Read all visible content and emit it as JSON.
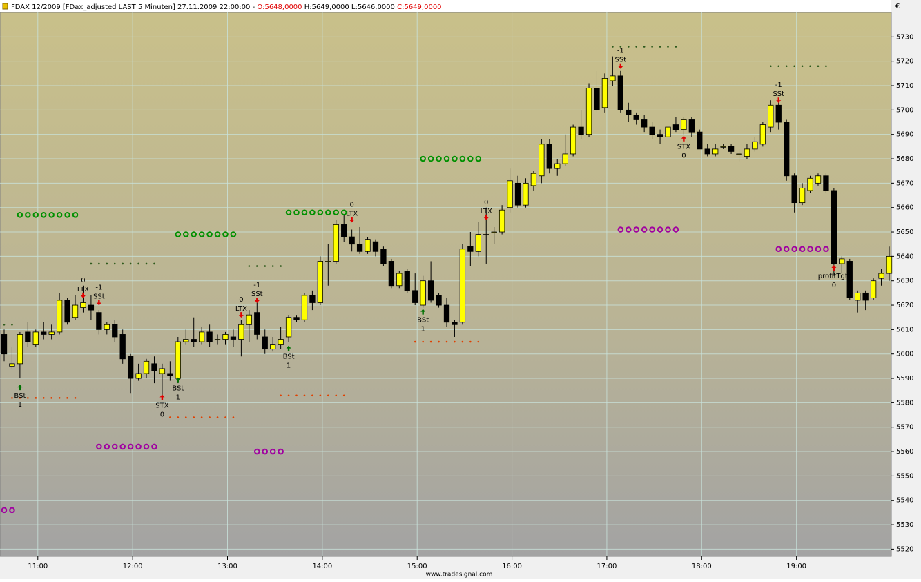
{
  "header": {
    "instrument": "FDAX 12/2009 [FDax_adjusted LAST 5 Minuten] 27.11.2009 22:00:00 -",
    "open": "O:5648,0000",
    "high": "H:5649,0000",
    "low": "L:5646,0000",
    "close": "C:5649,0000",
    "currency": "€"
  },
  "footer": "www.tradesignal.com",
  "chart_data": {
    "type": "candlestick",
    "categories": [
      null,
      null,
      null,
      null,
      "11:00",
      null,
      null,
      null,
      null,
      null,
      null,
      null,
      null,
      null,
      null,
      null,
      "12:00",
      null,
      null,
      null,
      null,
      null,
      null,
      null,
      null,
      null,
      null,
      null,
      "13:00",
      null,
      null,
      null,
      null,
      null,
      null,
      null,
      null,
      null,
      null,
      null,
      "14:00",
      null,
      null,
      null,
      null,
      null,
      null,
      null,
      null,
      null,
      null,
      null,
      "15:00",
      null,
      null,
      null,
      null,
      null,
      null,
      null,
      null,
      null,
      null,
      null,
      "16:00",
      null,
      null,
      null,
      null,
      null,
      null,
      null,
      null,
      null,
      null,
      null,
      "17:00",
      null,
      null,
      null,
      null,
      null,
      null,
      null,
      null,
      null,
      null,
      null,
      "18:00",
      null,
      null,
      null,
      null,
      null,
      null,
      null,
      null,
      null,
      null,
      null,
      "19:00",
      null,
      null,
      null,
      null,
      null,
      null,
      null,
      null,
      null,
      null,
      null,
      null
    ],
    "open": [
      5608,
      5595,
      5596,
      5609,
      5604,
      5609,
      5608,
      5609,
      5622,
      5615,
      5619,
      5620,
      5617,
      5610,
      5612,
      5608,
      5599,
      5590,
      5592,
      5596,
      5592,
      5592,
      5590,
      5605,
      5606,
      5605,
      5609,
      5606,
      5606,
      5607,
      5606,
      5612,
      5617,
      5607,
      5602,
      5604,
      5607,
      5615,
      5614,
      5624,
      5621,
      5638,
      5638,
      5653,
      5648,
      5645,
      5642,
      5646,
      5643,
      5638,
      5628,
      5634,
      5626,
      5620,
      5630,
      5624,
      5620,
      5613,
      5613,
      5644,
      5642,
      5649,
      5650,
      5650,
      5660,
      5670,
      5661,
      5669,
      5673,
      5686,
      5676,
      5678,
      5682,
      5693,
      5690,
      5709,
      5701,
      5712,
      5714,
      5700,
      5698,
      5696,
      5693,
      5690,
      5689,
      5694,
      5692,
      5696,
      5691,
      5684,
      5682,
      5685,
      5685,
      5682,
      5681,
      5684,
      5686,
      5693,
      5702,
      5695,
      5673,
      5662,
      5667,
      5670,
      5673,
      5667,
      5637,
      5638,
      5622,
      5625,
      5623,
      5631,
      5633
    ],
    "high": [
      5610,
      5603,
      5609,
      5613,
      5610,
      5613,
      5612,
      5625,
      5623,
      5624,
      5628,
      5624,
      5618,
      5613,
      5614,
      5610,
      5600,
      5596,
      5598,
      5599,
      5596,
      5597,
      5607,
      5610,
      5615,
      5611,
      5612,
      5608,
      5609,
      5610,
      5614,
      5618,
      5621,
      5610,
      5607,
      5611,
      5616,
      5616,
      5625,
      5626,
      5640,
      5645,
      5655,
      5657,
      5651,
      5652,
      5648,
      5647,
      5644,
      5639,
      5634,
      5635,
      5633,
      5632,
      5638,
      5625,
      5623,
      5614,
      5645,
      5650,
      5654,
      5660,
      5652,
      5661,
      5676,
      5673,
      5672,
      5675,
      5688,
      5688,
      5680,
      5690,
      5694,
      5700,
      5711,
      5716,
      5715,
      5722,
      5716,
      5703,
      5699,
      5698,
      5695,
      5692,
      5696,
      5697,
      5697,
      5697,
      5692,
      5686,
      5686,
      5686,
      5686,
      5684,
      5686,
      5689,
      5695,
      5704,
      5704,
      5696,
      5674,
      5670,
      5673,
      5674,
      5674,
      5668,
      5640,
      5639,
      5626,
      5626,
      5631,
      5635,
      5644
    ],
    "low": [
      5597,
      5594,
      5590,
      5603,
      5603,
      5606,
      5606,
      5608,
      5612,
      5614,
      5617,
      5614,
      5608,
      5608,
      5605,
      5596,
      5584,
      5589,
      5590,
      5588,
      5583,
      5589,
      5588,
      5604,
      5603,
      5604,
      5603,
      5604,
      5604,
      5603,
      5599,
      5605,
      5606,
      5600,
      5601,
      5602,
      5605,
      5613,
      5613,
      5618,
      5620,
      5628,
      5637,
      5646,
      5642,
      5641,
      5641,
      5640,
      5636,
      5627,
      5627,
      5625,
      5620,
      5619,
      5621,
      5619,
      5611,
      5607,
      5612,
      5636,
      5640,
      5637,
      5645,
      5649,
      5658,
      5660,
      5660,
      5667,
      5670,
      5674,
      5673,
      5677,
      5681,
      5688,
      5689,
      5699,
      5699,
      5710,
      5699,
      5695,
      5694,
      5691,
      5688,
      5686,
      5687,
      5691,
      5690,
      5689,
      5684,
      5681,
      5681,
      5684,
      5682,
      5679,
      5680,
      5683,
      5685,
      5691,
      5692,
      5671,
      5658,
      5661,
      5666,
      5669,
      5666,
      5632,
      5633,
      5622,
      5617,
      5618,
      5622,
      5628,
      5630
    ],
    "close": [
      5600,
      5596,
      5608,
      5605,
      5609,
      5608,
      5609,
      5622,
      5613,
      5620,
      5621,
      5618,
      5610,
      5612,
      5607,
      5598,
      5590,
      5592,
      5597,
      5593,
      5594,
      5591,
      5605,
      5606,
      5605,
      5609,
      5605,
      5606,
      5608,
      5606,
      5612,
      5616,
      5608,
      5602,
      5604,
      5606,
      5615,
      5614,
      5624,
      5621,
      5638,
      5638,
      5653,
      5648,
      5645,
      5642,
      5647,
      5642,
      5637,
      5628,
      5633,
      5626,
      5621,
      5630,
      5622,
      5620,
      5613,
      5612,
      5643,
      5642,
      5649,
      5649,
      5650,
      5659,
      5671,
      5661,
      5670,
      5674,
      5686,
      5676,
      5678,
      5682,
      5693,
      5690,
      5709,
      5700,
      5713,
      5714,
      5700,
      5698,
      5696,
      5693,
      5690,
      5689,
      5693,
      5692,
      5696,
      5691,
      5684,
      5682,
      5684,
      5685,
      5683,
      5682,
      5684,
      5687,
      5694,
      5702,
      5695,
      5673,
      5662,
      5668,
      5672,
      5673,
      5667,
      5637,
      5639,
      5623,
      5625,
      5622,
      5630,
      5633,
      5640
    ],
    "up_color": "#ffff00",
    "down_color": "#000000",
    "ylim": [
      5517,
      5740
    ],
    "yticks": [
      5520,
      5530,
      5540,
      5550,
      5560,
      5570,
      5580,
      5590,
      5600,
      5610,
      5620,
      5630,
      5640,
      5650,
      5660,
      5670,
      5680,
      5690,
      5700,
      5710,
      5720,
      5730
    ],
    "grid": true,
    "levels": [
      {
        "style": "ring",
        "color": "#009000",
        "value": 5657,
        "from": 2,
        "to": 9
      },
      {
        "style": "ring",
        "color": "#009000",
        "value": 5649,
        "from": 22,
        "to": 29
      },
      {
        "style": "ring",
        "color": "#009000",
        "value": 5658,
        "from": 36,
        "to": 43
      },
      {
        "style": "ring",
        "color": "#009000",
        "value": 5680,
        "from": 53,
        "to": 60
      },
      {
        "style": "ring",
        "color": "#a000a0",
        "value": 5536,
        "from": 0,
        "to": 1
      },
      {
        "style": "ring",
        "color": "#a000a0",
        "value": 5562,
        "from": 12,
        "to": 19
      },
      {
        "style": "ring",
        "color": "#a000a0",
        "value": 5560,
        "from": 32,
        "to": 35
      },
      {
        "style": "ring",
        "color": "#a000a0",
        "value": 5651,
        "from": 78,
        "to": 85
      },
      {
        "style": "ring",
        "color": "#a000a0",
        "value": 5643,
        "from": 98,
        "to": 104
      },
      {
        "style": "dot",
        "color": "#2e5a1c",
        "value": 5612,
        "from": 0,
        "to": 1
      },
      {
        "style": "dot",
        "color": "#2e5a1c",
        "value": 5637,
        "from": 11,
        "to": 19
      },
      {
        "style": "dot",
        "color": "#2e5a1c",
        "value": 5636,
        "from": 31,
        "to": 35
      },
      {
        "style": "dot",
        "color": "#2e5a1c",
        "value": 5726,
        "from": 77,
        "to": 85
      },
      {
        "style": "dot",
        "color": "#2e5a1c",
        "value": 5718,
        "from": 97,
        "to": 104
      },
      {
        "style": "dot",
        "color": "#e04000",
        "value": 5582,
        "from": 1,
        "to": 9
      },
      {
        "style": "dot",
        "color": "#e04000",
        "value": 5574,
        "from": 21,
        "to": 29
      },
      {
        "style": "dot",
        "color": "#e04000",
        "value": 5583,
        "from": 35,
        "to": 43
      },
      {
        "style": "dot",
        "color": "#e04000",
        "value": 5605,
        "from": 52,
        "to": 60
      }
    ],
    "signals": [
      {
        "label": "BSt",
        "position": 1,
        "bar": 2,
        "price": 5586,
        "direction": "up",
        "color": "#007000"
      },
      {
        "label": "LTX",
        "position": 0,
        "bar": 10,
        "price": 5624,
        "direction": "down",
        "color": "#e00000"
      },
      {
        "label": "SSt",
        "position": -1,
        "bar": 12,
        "price": 5621,
        "direction": "down",
        "color": "#e00000"
      },
      {
        "label": "STX",
        "position": 0,
        "bar": 20,
        "price": 5582,
        "direction": "up",
        "color": "#e00000"
      },
      {
        "label": "BSt",
        "position": 1,
        "bar": 22,
        "price": 5589,
        "direction": "up",
        "color": "#007000"
      },
      {
        "label": "LTX",
        "position": 0,
        "bar": 30,
        "price": 5616,
        "direction": "down",
        "color": "#e00000"
      },
      {
        "label": "SSt",
        "position": -1,
        "bar": 32,
        "price": 5622,
        "direction": "down",
        "color": "#e00000"
      },
      {
        "label": "BSt",
        "position": 1,
        "bar": 36,
        "price": 5602,
        "direction": "up",
        "color": "#007000"
      },
      {
        "label": "LTX",
        "position": 0,
        "bar": 44,
        "price": 5655,
        "direction": "down",
        "color": "#e00000"
      },
      {
        "label": "BSt",
        "position": 1,
        "bar": 53,
        "price": 5617,
        "direction": "up",
        "color": "#007000"
      },
      {
        "label": "LTX",
        "position": 0,
        "bar": 61,
        "price": 5656,
        "direction": "down",
        "color": "#e00000"
      },
      {
        "label": "SSt",
        "position": -1,
        "bar": 78,
        "price": 5718,
        "direction": "down",
        "color": "#e00000"
      },
      {
        "label": "STX",
        "position": 0,
        "bar": 86,
        "price": 5688,
        "direction": "up",
        "color": "#e00000"
      },
      {
        "label": "SSt",
        "position": -1,
        "bar": 98,
        "price": 5704,
        "direction": "down",
        "color": "#e00000"
      },
      {
        "label": "profitTgt.",
        "position": 0,
        "bar": 105,
        "price": 5635,
        "direction": "up",
        "color": "#e00000"
      }
    ]
  }
}
